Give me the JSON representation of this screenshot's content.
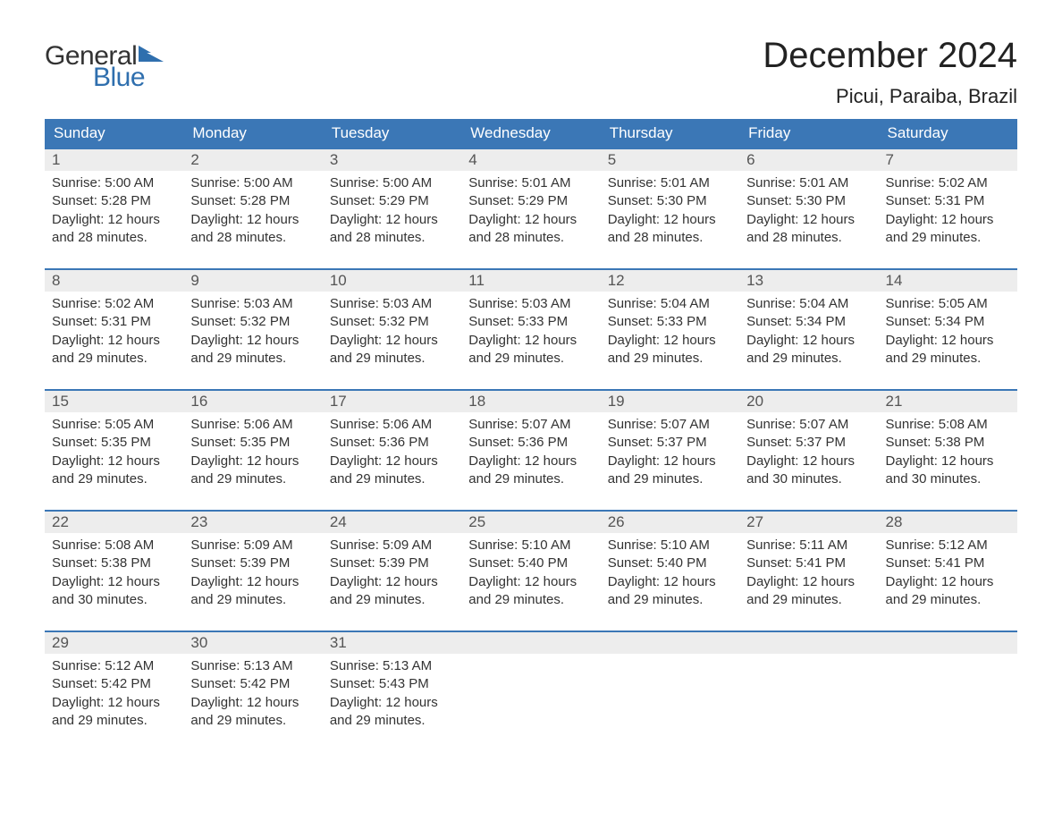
{
  "logo": {
    "general": "General",
    "blue": "Blue",
    "flag_color": "#2f6fae"
  },
  "header": {
    "month_title": "December 2024",
    "location": "Picui, Paraiba, Brazil"
  },
  "colors": {
    "header_bg": "#3b77b6",
    "header_text": "#ffffff",
    "daynum_bg": "#ededed",
    "daynum_text": "#555555",
    "body_text": "#333333",
    "rule": "#3b77b6",
    "page_bg": "#ffffff",
    "logo_blue": "#2f6fae"
  },
  "typography": {
    "month_title_fontsize": 40,
    "location_fontsize": 22,
    "dow_fontsize": 17,
    "daynum_fontsize": 17,
    "cell_fontsize": 15
  },
  "calendar": {
    "type": "table",
    "days_of_week": [
      "Sunday",
      "Monday",
      "Tuesday",
      "Wednesday",
      "Thursday",
      "Friday",
      "Saturday"
    ],
    "labels": {
      "sunrise_prefix": "Sunrise: ",
      "sunset_prefix": "Sunset: ",
      "daylight_prefix": "Daylight: ",
      "hours_word": " hours",
      "and_word": "and ",
      "minutes_word": " minutes."
    },
    "weeks": [
      [
        {
          "d": "1",
          "sr": "5:00 AM",
          "ss": "5:28 PM",
          "dh": "12",
          "dm": "28"
        },
        {
          "d": "2",
          "sr": "5:00 AM",
          "ss": "5:28 PM",
          "dh": "12",
          "dm": "28"
        },
        {
          "d": "3",
          "sr": "5:00 AM",
          "ss": "5:29 PM",
          "dh": "12",
          "dm": "28"
        },
        {
          "d": "4",
          "sr": "5:01 AM",
          "ss": "5:29 PM",
          "dh": "12",
          "dm": "28"
        },
        {
          "d": "5",
          "sr": "5:01 AM",
          "ss": "5:30 PM",
          "dh": "12",
          "dm": "28"
        },
        {
          "d": "6",
          "sr": "5:01 AM",
          "ss": "5:30 PM",
          "dh": "12",
          "dm": "28"
        },
        {
          "d": "7",
          "sr": "5:02 AM",
          "ss": "5:31 PM",
          "dh": "12",
          "dm": "29"
        }
      ],
      [
        {
          "d": "8",
          "sr": "5:02 AM",
          "ss": "5:31 PM",
          "dh": "12",
          "dm": "29"
        },
        {
          "d": "9",
          "sr": "5:03 AM",
          "ss": "5:32 PM",
          "dh": "12",
          "dm": "29"
        },
        {
          "d": "10",
          "sr": "5:03 AM",
          "ss": "5:32 PM",
          "dh": "12",
          "dm": "29"
        },
        {
          "d": "11",
          "sr": "5:03 AM",
          "ss": "5:33 PM",
          "dh": "12",
          "dm": "29"
        },
        {
          "d": "12",
          "sr": "5:04 AM",
          "ss": "5:33 PM",
          "dh": "12",
          "dm": "29"
        },
        {
          "d": "13",
          "sr": "5:04 AM",
          "ss": "5:34 PM",
          "dh": "12",
          "dm": "29"
        },
        {
          "d": "14",
          "sr": "5:05 AM",
          "ss": "5:34 PM",
          "dh": "12",
          "dm": "29"
        }
      ],
      [
        {
          "d": "15",
          "sr": "5:05 AM",
          "ss": "5:35 PM",
          "dh": "12",
          "dm": "29"
        },
        {
          "d": "16",
          "sr": "5:06 AM",
          "ss": "5:35 PM",
          "dh": "12",
          "dm": "29"
        },
        {
          "d": "17",
          "sr": "5:06 AM",
          "ss": "5:36 PM",
          "dh": "12",
          "dm": "29"
        },
        {
          "d": "18",
          "sr": "5:07 AM",
          "ss": "5:36 PM",
          "dh": "12",
          "dm": "29"
        },
        {
          "d": "19",
          "sr": "5:07 AM",
          "ss": "5:37 PM",
          "dh": "12",
          "dm": "29"
        },
        {
          "d": "20",
          "sr": "5:07 AM",
          "ss": "5:37 PM",
          "dh": "12",
          "dm": "30"
        },
        {
          "d": "21",
          "sr": "5:08 AM",
          "ss": "5:38 PM",
          "dh": "12",
          "dm": "30"
        }
      ],
      [
        {
          "d": "22",
          "sr": "5:08 AM",
          "ss": "5:38 PM",
          "dh": "12",
          "dm": "30"
        },
        {
          "d": "23",
          "sr": "5:09 AM",
          "ss": "5:39 PM",
          "dh": "12",
          "dm": "29"
        },
        {
          "d": "24",
          "sr": "5:09 AM",
          "ss": "5:39 PM",
          "dh": "12",
          "dm": "29"
        },
        {
          "d": "25",
          "sr": "5:10 AM",
          "ss": "5:40 PM",
          "dh": "12",
          "dm": "29"
        },
        {
          "d": "26",
          "sr": "5:10 AM",
          "ss": "5:40 PM",
          "dh": "12",
          "dm": "29"
        },
        {
          "d": "27",
          "sr": "5:11 AM",
          "ss": "5:41 PM",
          "dh": "12",
          "dm": "29"
        },
        {
          "d": "28",
          "sr": "5:12 AM",
          "ss": "5:41 PM",
          "dh": "12",
          "dm": "29"
        }
      ],
      [
        {
          "d": "29",
          "sr": "5:12 AM",
          "ss": "5:42 PM",
          "dh": "12",
          "dm": "29"
        },
        {
          "d": "30",
          "sr": "5:13 AM",
          "ss": "5:42 PM",
          "dh": "12",
          "dm": "29"
        },
        {
          "d": "31",
          "sr": "5:13 AM",
          "ss": "5:43 PM",
          "dh": "12",
          "dm": "29"
        },
        null,
        null,
        null,
        null
      ]
    ]
  }
}
